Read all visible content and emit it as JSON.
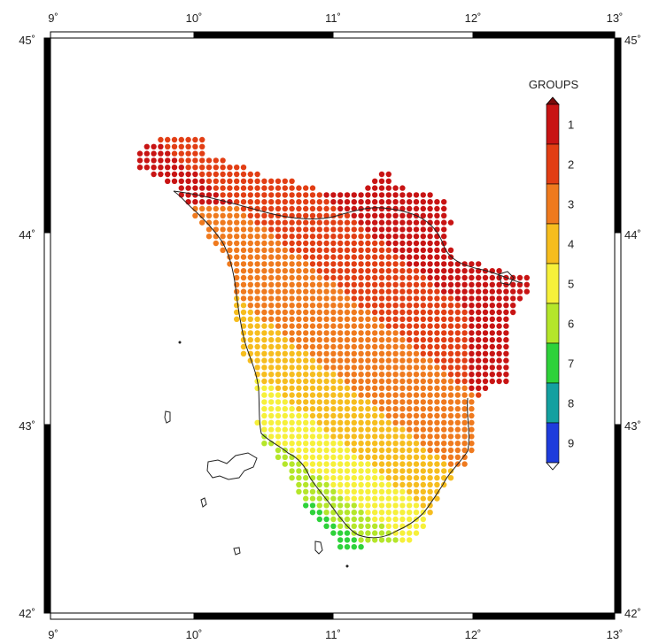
{
  "map": {
    "lon_ticks": [
      "9˚",
      "10˚",
      "11˚",
      "12˚",
      "13˚"
    ],
    "lat_ticks": [
      "45˚",
      "44˚",
      "43˚",
      "42˚"
    ],
    "lon_range": [
      9,
      13
    ],
    "lat_range": [
      42,
      45
    ]
  },
  "legend": {
    "title": "GROUPS",
    "groups": [
      {
        "label": "1",
        "color": "#c81414"
      },
      {
        "label": "2",
        "color": "#e23e14"
      },
      {
        "label": "3",
        "color": "#ef7a1e"
      },
      {
        "label": "4",
        "color": "#f6bd1e"
      },
      {
        "label": "5",
        "color": "#f6f03a"
      },
      {
        "label": "6",
        "color": "#b4e62a"
      },
      {
        "label": "7",
        "color": "#2ed23a"
      },
      {
        "label": "8",
        "color": "#14a0a0"
      },
      {
        "label": "9",
        "color": "#1e3cdc"
      }
    ],
    "top_cap_color": "#7a0a0a",
    "bottom_cap_color": "#ffffff"
  },
  "chart_data": {
    "type": "scatter",
    "description_source": "gridded points over Tuscany colored by group",
    "xlim": [
      9,
      13
    ],
    "ylim": [
      42,
      45
    ],
    "legend_placement": "top-right",
    "grid_step_deg": 0.05
  }
}
